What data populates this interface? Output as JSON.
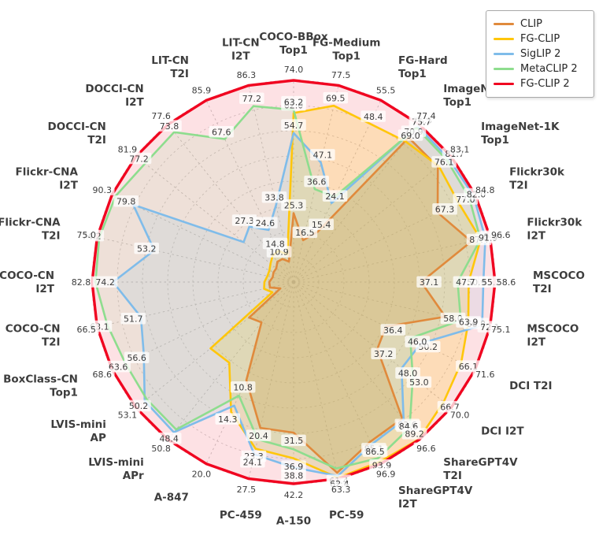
{
  "legend": {
    "entries": [
      "CLIP",
      "FG-CLIP",
      "SigLIP 2",
      "MetaCLIP 2",
      "FG-CLIP 2"
    ]
  },
  "chart_data": {
    "type": "radar",
    "title": "",
    "axis_count": 28,
    "normalization": "each axis scaled so the maximum (FG-CLIP 2) value sits on the outer rim",
    "grid": "dashed concentric rings and dashed radial spokes",
    "legend_position": "top-right",
    "categories": [
      "COCO-BBox Top1",
      "FG-Medium Top1",
      "FG-Hard Top1",
      "ImageNet-V2 Top1",
      "ImageNet-1K Top1",
      "Flickr30k T2I",
      "Flickr30k I2T",
      "MSCOCO T2I",
      "MSCOCO I2T",
      "DCI T2I",
      "DCI I2T",
      "ShareGPT4V T2I",
      "ShareGPT4V I2T",
      "PC-59",
      "A-150",
      "PC-459",
      "A-847",
      "LVIS-mini APr",
      "LVIS-mini AP",
      "BoxClass-CN Top1",
      "COCO-CN T2I",
      "COCO-CN I2T",
      "Flickr-CNA T2I",
      "Flickr-CNA I2T",
      "DOCCI-CN T2I",
      "DOCCI-CN I2T",
      "LIT-CN T2I",
      "LIT-CN I2T"
    ],
    "axis_label_lines": [
      [
        "COCO-BBox",
        "Top1"
      ],
      [
        "FG-Medium",
        "Top1"
      ],
      [
        "FG-Hard",
        "Top1"
      ],
      [
        "ImageNet-V2",
        "Top1"
      ],
      [
        "ImageNet-1K",
        "Top1"
      ],
      [
        "Flickr30k",
        "T2I"
      ],
      [
        "Flickr30k",
        "I2T"
      ],
      [
        "MSCOCO",
        "T2I"
      ],
      [
        "MSCOCO",
        "I2T"
      ],
      [
        "DCI  T2I"
      ],
      [
        "DCI  I2T"
      ],
      [
        "ShareGPT4V",
        "T2I"
      ],
      [
        "ShareGPT4V",
        "I2T"
      ],
      [
        "PC-59"
      ],
      [
        "A-150"
      ],
      [
        "PC-459"
      ],
      [
        "A-847"
      ],
      [
        "LVIS-mini",
        "APr"
      ],
      [
        "LVIS-mini",
        "AP"
      ],
      [
        "BoxClass-CN",
        "Top1"
      ],
      [
        "COCO-CN",
        "T2I"
      ],
      [
        "COCO-CN",
        "I2T"
      ],
      [
        "Flickr-CNA",
        "T2I"
      ],
      [
        "Flickr-CNA",
        "I2T"
      ],
      [
        "DOCCI-CN",
        "T2I"
      ],
      [
        "DOCCI-CN",
        "I2T"
      ],
      [
        "LIT-CN",
        "T2I"
      ],
      [
        "LIT-CN",
        "I2T"
      ]
    ],
    "series": [
      {
        "name": "CLIP",
        "color": "#E08A3C",
        "fill_alpha": 0.3,
        "values": [
          25.3,
          16.5,
          15.4,
          70.9,
          76.1,
          67.3,
          87.4,
          37.1,
          58.0,
          36.4,
          37.2,
          83.6,
          85.1,
          61.4,
          31.5,
          20.4,
          10.8,
          13.0,
          15.0,
          5.0,
          8.0,
          10.0,
          8.0,
          10.0,
          9.0,
          10.0,
          10.9,
          9.0
        ],
        "labels": [
          "25.3",
          "16.5",
          "15.4",
          "70.9",
          "76.1",
          "67.3",
          "87.4",
          "37.1",
          "58.0",
          "36.4",
          "37.2",
          "83.6",
          "85.1",
          "61.4",
          "31.5",
          "20.4",
          "10.8",
          null,
          null,
          null,
          null,
          null,
          null,
          null,
          null,
          null,
          "10.9",
          null
        ]
      },
      {
        "name": "FG-CLIP",
        "color": "#FFC60B",
        "fill_alpha": 0.2,
        "values": [
          62.0,
          69.5,
          48.4,
          69.0,
          76.6,
          77.0,
          92.0,
          50.9,
          66.8,
          66.1,
          66.7,
          96.3,
          95.8,
          63.0,
          36.9,
          23.3,
          14.3,
          26.0,
          28.0,
          8.0,
          10.0,
          12.0,
          10.0,
          12.0,
          12.0,
          13.0,
          14.8,
          12.0
        ],
        "labels": [
          "62.0",
          "69.5",
          "48.4",
          "69.0",
          null,
          "77.0",
          null,
          "50.9",
          "66.8",
          "66.1",
          "66.7",
          null,
          null,
          null,
          "36.9",
          "23.3",
          "14.3",
          null,
          null,
          null,
          null,
          null,
          null,
          null,
          null,
          null,
          "14.8",
          null
        ]
      },
      {
        "name": "SigLIP 2",
        "color": "#7FBCEA",
        "fill_alpha": 0.13,
        "values": [
          54.7,
          47.1,
          24.1,
          76.5,
          81.7,
          84.0,
          94.3,
          55.2,
          72.1,
          50.2,
          48.0,
          84.6,
          86.5,
          62.4,
          38.8,
          24.1,
          13.6,
          48.4,
          50.2,
          56.6,
          51.7,
          74.2,
          53.2,
          79.8,
          26.0,
          27.3,
          24.6,
          33.8
        ],
        "labels": [
          "54.7",
          "47.1",
          "24.1",
          "76.5",
          "81.7",
          null,
          "94.3",
          "55.2",
          "72.1",
          "50.2",
          "48.0",
          "84.6",
          "86.5",
          "62.4",
          "38.8",
          "24.1",
          null,
          "48.4",
          "50.2",
          "56.6",
          "51.7",
          "74.2",
          "53.2",
          "79.8",
          null,
          "27.3",
          "24.6",
          "33.8"
        ]
      },
      {
        "name": "MetaCLIP 2",
        "color": "#8EDD8E",
        "fill_alpha": 0.13,
        "values": [
          63.2,
          36.6,
          26.0,
          75.7,
          80.8,
          82.0,
          91.9,
          47.7,
          63.9,
          46.0,
          53.0,
          89.2,
          93.9,
          60.0,
          35.0,
          22.0,
          12.5,
          47.5,
          49.5,
          63.6,
          63.1,
          81.4,
          74.2,
          88.6,
          77.2,
          73.8,
          67.6,
          77.2
        ],
        "labels": [
          "63.2",
          "36.6",
          null,
          "75.7",
          null,
          "82.0",
          "91.9",
          "47.7",
          "63.9",
          "46.0",
          "53.0",
          "89.2",
          "93.9",
          null,
          null,
          null,
          null,
          null,
          null,
          "63.6",
          "63.1",
          null,
          "74.2",
          null,
          "77.2",
          "73.8",
          "67.6",
          "77.2"
        ]
      },
      {
        "name": "FG-CLIP 2",
        "color": "#F00520",
        "fill_alpha": 0.12,
        "values": [
          74.0,
          77.5,
          55.5,
          77.4,
          83.1,
          84.8,
          96.6,
          58.6,
          75.1,
          71.6,
          70.0,
          96.6,
          96.9,
          63.3,
          42.2,
          27.5,
          20.0,
          50.8,
          53.1,
          68.6,
          66.5,
          82.8,
          75.0,
          90.3,
          81.9,
          77.6,
          85.9,
          86.3
        ],
        "labels": [
          "74.0",
          "77.5",
          "55.5",
          "77.4",
          "83.1",
          "84.8",
          "96.6",
          "58.6",
          "75.1",
          "71.6",
          "70.0",
          "96.6",
          "96.9",
          "63.3",
          "42.2",
          "27.5",
          "20.0",
          "50.8",
          "53.1",
          "68.6",
          "66.5",
          "82.8",
          "75.0",
          "90.3",
          "81.9",
          "77.6",
          "85.9",
          "86.3"
        ]
      }
    ],
    "style": {
      "axis_name_color": "#3D3D3D",
      "value_label_color": "#3C3C3C",
      "grid_color": "#CFCFCF",
      "background": "#FFFFFF"
    }
  }
}
